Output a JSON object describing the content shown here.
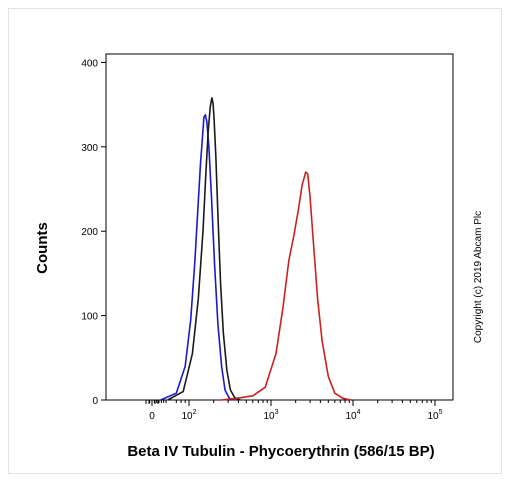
{
  "chart_data": {
    "type": "line",
    "title": "",
    "xlabel": "Beta IV Tubulin - Phycoerythrin (586/15 BP)",
    "ylabel": "Counts",
    "x_scale": "log",
    "xlim": [
      -10,
      300000
    ],
    "ylim": [
      0,
      410
    ],
    "yticks": [
      0,
      100,
      200,
      300,
      400
    ],
    "ytick_labels": [
      "0",
      "100",
      "200",
      "300",
      "400"
    ],
    "xticks": [
      0,
      100,
      1000,
      10000,
      100000
    ],
    "xtick_labels": [
      {
        "base": "0",
        "exp": ""
      },
      {
        "base": "10",
        "exp": "2"
      },
      {
        "base": "10",
        "exp": "3"
      },
      {
        "base": "10",
        "exp": "4"
      },
      {
        "base": "10",
        "exp": "5"
      }
    ],
    "grid": false,
    "legend": "none",
    "series": [
      {
        "color": "#1a1acc",
        "x": [
          45,
          70,
          90,
          105,
          118,
          128,
          138,
          148,
          152,
          158,
          165,
          175,
          188,
          205,
          225,
          250,
          275,
          310,
          360
        ],
        "y": [
          0,
          8,
          40,
          95,
          165,
          225,
          280,
          320,
          335,
          338,
          330,
          300,
          240,
          160,
          90,
          40,
          12,
          2,
          0
        ]
      },
      {
        "color": "#1a1a1a",
        "x": [
          55,
          85,
          110,
          130,
          148,
          160,
          172,
          182,
          190,
          196,
          202,
          212,
          225,
          242,
          262,
          290,
          320,
          360,
          420
        ],
        "y": [
          0,
          10,
          55,
          120,
          200,
          265,
          320,
          348,
          358,
          352,
          335,
          290,
          220,
          140,
          80,
          35,
          12,
          3,
          0
        ]
      },
      {
        "color": "#cc2020",
        "x": [
          250,
          380,
          600,
          850,
          1150,
          1400,
          1650,
          1900,
          2150,
          2400,
          2650,
          2800,
          3000,
          3300,
          3700,
          4200,
          5000,
          6000,
          7500,
          9500
        ],
        "y": [
          0,
          2,
          5,
          15,
          55,
          110,
          165,
          195,
          225,
          255,
          270,
          268,
          240,
          185,
          120,
          70,
          28,
          8,
          2,
          0
        ]
      }
    ],
    "annotations": [
      "Copyright (c) 2019 Abcam Plc"
    ]
  }
}
